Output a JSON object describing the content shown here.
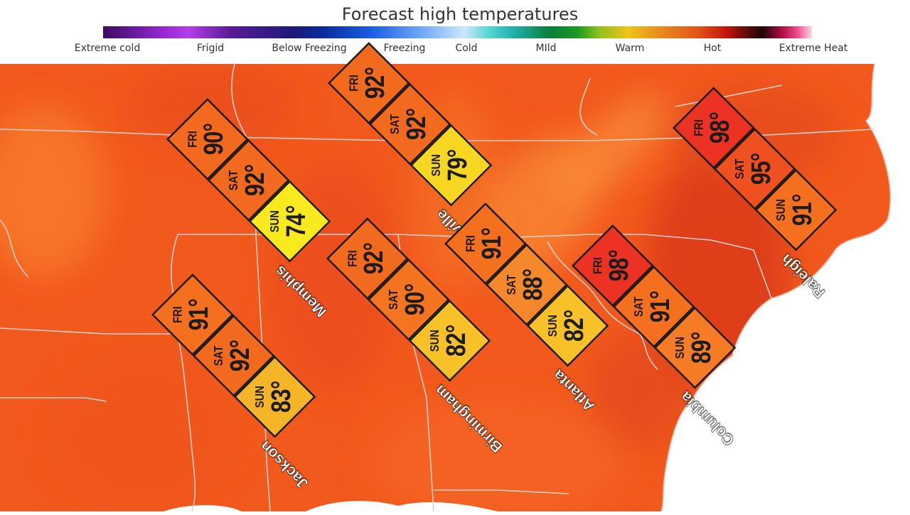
{
  "legend": {
    "title": "Forecast high temperatures",
    "labels": [
      "Extreme cold",
      "Frigid",
      "Below Freezing",
      "Freezing",
      "Cold",
      "MIld",
      "Warm",
      "Hot",
      "Extreme Heat"
    ]
  },
  "colors": {
    "map_base": "#f2591c",
    "land_dark": "#d8401a",
    "land_light": "#f77b2a",
    "ocean": "#ffffff",
    "borders": "#d6d0cc"
  },
  "forecasts": [
    {
      "city": "Memphis",
      "days": [
        {
          "day": "FRI",
          "temp": "90°",
          "color": "#f36a1f"
        },
        {
          "day": "SAT",
          "temp": "92°",
          "color": "#f26a1e"
        },
        {
          "day": "SUN",
          "temp": "74°",
          "color": "#f9ea1e"
        }
      ]
    },
    {
      "city": "Nashville",
      "days": [
        {
          "day": "FRI",
          "temp": "92°",
          "color": "#f26a1e"
        },
        {
          "day": "SAT",
          "temp": "92°",
          "color": "#f26a1e"
        },
        {
          "day": "SUN",
          "temp": "79°",
          "color": "#f8d722"
        }
      ]
    },
    {
      "city": "Birmingham",
      "days": [
        {
          "day": "FRI",
          "temp": "92°",
          "color": "#f26a1e"
        },
        {
          "day": "SAT",
          "temp": "90°",
          "color": "#f4741f"
        },
        {
          "day": "SUN",
          "temp": "82°",
          "color": "#f7c127"
        }
      ]
    },
    {
      "city": "Atlanta",
      "days": [
        {
          "day": "FRI",
          "temp": "91°",
          "color": "#f4701f"
        },
        {
          "day": "SAT",
          "temp": "88°",
          "color": "#f5882a"
        },
        {
          "day": "SUN",
          "temp": "82°",
          "color": "#f7c127"
        }
      ]
    },
    {
      "city": "Jackson",
      "days": [
        {
          "day": "FRI",
          "temp": "91°",
          "color": "#f4701f"
        },
        {
          "day": "SAT",
          "temp": "92°",
          "color": "#f26a1e"
        },
        {
          "day": "SUN",
          "temp": "83°",
          "color": "#f6b526"
        }
      ]
    },
    {
      "city": "Columbia",
      "days": [
        {
          "day": "FRI",
          "temp": "98°",
          "color": "#ec3323"
        },
        {
          "day": "SAT",
          "temp": "91°",
          "color": "#f4701f"
        },
        {
          "day": "SUN",
          "temp": "89°",
          "color": "#f57c24"
        }
      ]
    },
    {
      "city": "Raleigh",
      "days": [
        {
          "day": "FRI",
          "temp": "98°",
          "color": "#ec3323"
        },
        {
          "day": "SAT",
          "temp": "95°",
          "color": "#f04f1f"
        },
        {
          "day": "SUN",
          "temp": "91°",
          "color": "#f4701f"
        }
      ]
    }
  ]
}
